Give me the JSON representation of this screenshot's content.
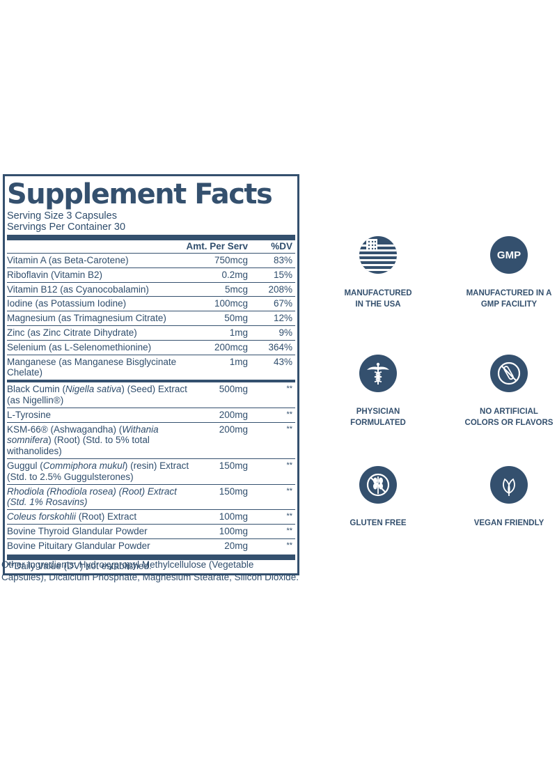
{
  "facts": {
    "title": "Supplement Facts",
    "serving_size": "Serving Size 3 Capsules",
    "servings_per_container": "Servings Per Container 30",
    "header": {
      "amount": "Amt. Per Serv",
      "dv": "%DV"
    },
    "vitamins": [
      {
        "name": "Vitamin A (as Beta-Carotene)",
        "amount": "750mcg",
        "dv": "83%"
      },
      {
        "name": "Riboflavin (Vitamin B2)",
        "amount": "0.2mg",
        "dv": "15%"
      },
      {
        "name": "Vitamin B12 (as Cyanocobalamin)",
        "amount": "5mcg",
        "dv": "208%"
      },
      {
        "name": "Iodine (as Potassium Iodine)",
        "amount": "100mcg",
        "dv": "67%"
      },
      {
        "name": "Magnesium (as Trimagnesium Citrate)",
        "amount": "50mg",
        "dv": "12%"
      },
      {
        "name": "Zinc (as Zinc Citrate Dihydrate)",
        "amount": "1mg",
        "dv": "9%"
      },
      {
        "name": "Selenium (as L-Selenomethionine)",
        "amount": "200mcg",
        "dv": "364%"
      },
      {
        "name": "Manganese (as Manganese Bisglycinate Chelate)",
        "amount": "1mg",
        "dv": "43%"
      }
    ],
    "herbals": [
      {
        "pre": "Black Cumin (",
        "it": "Nigella sativa",
        "post": ") (Seed) Extract (as Nigellin®)",
        "amount": "500mg",
        "dv": "**"
      },
      {
        "pre": "L-Tyrosine",
        "it": "",
        "post": "",
        "amount": "200mg",
        "dv": "**"
      },
      {
        "pre": "KSM-66® (Ashwagandha) (",
        "it": "Withania somnifera",
        "post": ") (Root) (Std. to 5% total withanolides)",
        "amount": "200mg",
        "dv": "**"
      },
      {
        "pre": "Guggul (",
        "it": "Commiphora mukul",
        "post": ") (resin) Extract (Std. to 2.5% Guggulsterones)",
        "amount": "150mg",
        "dv": "**"
      },
      {
        "pre": "",
        "it": "Rhodiola",
        "post": " (Rhodiola rosea) (Root) Extract (Std. 1% Rosavins)",
        "amount": "150mg",
        "dv": "**"
      },
      {
        "pre": "",
        "it": "Coleus forskohlii",
        "post": " (Root) Extract",
        "amount": "100mg",
        "dv": "**"
      },
      {
        "pre": "Bovine Thyroid Glandular Powder",
        "it": "",
        "post": "",
        "amount": "100mg",
        "dv": "**"
      },
      {
        "pre": "Bovine Pituitary Glandular Powder",
        "it": "",
        "post": "",
        "amount": "20mg",
        "dv": "**"
      }
    ],
    "footnote": "**Daily Value (DV) not established."
  },
  "other_ingredients": "Other Ingredients: Hydroxypropyl Methylcellulose (Vegetable Capsules), Dicalcium Phosphate, Magnesium Stearate, Silicon Dioxide.",
  "badges": [
    {
      "id": "usa",
      "icon": "usa-flag-icon",
      "line1": "MANUFACTURED",
      "line2": "IN THE USA"
    },
    {
      "id": "gmp",
      "icon": "gmp-icon",
      "line1": "MANUFACTURED IN A",
      "line2": "GMP FACILITY",
      "icon_text": "GMP"
    },
    {
      "id": "physician",
      "icon": "caduceus-icon",
      "line1": "PHYSICIAN",
      "line2": "FORMULATED"
    },
    {
      "id": "no-artificial",
      "icon": "no-test-tube-icon",
      "line1": "NO ARTIFICIAL",
      "line2": "COLORS OR FLAVORS"
    },
    {
      "id": "gluten",
      "icon": "no-wheat-icon",
      "line1": "GLUTEN FREE",
      "line2": ""
    },
    {
      "id": "vegan",
      "icon": "leaf-icon",
      "line1": "VEGAN FRIENDLY",
      "line2": ""
    }
  ],
  "colors": {
    "primary": "#34506e",
    "text": "#2f4d6c"
  }
}
